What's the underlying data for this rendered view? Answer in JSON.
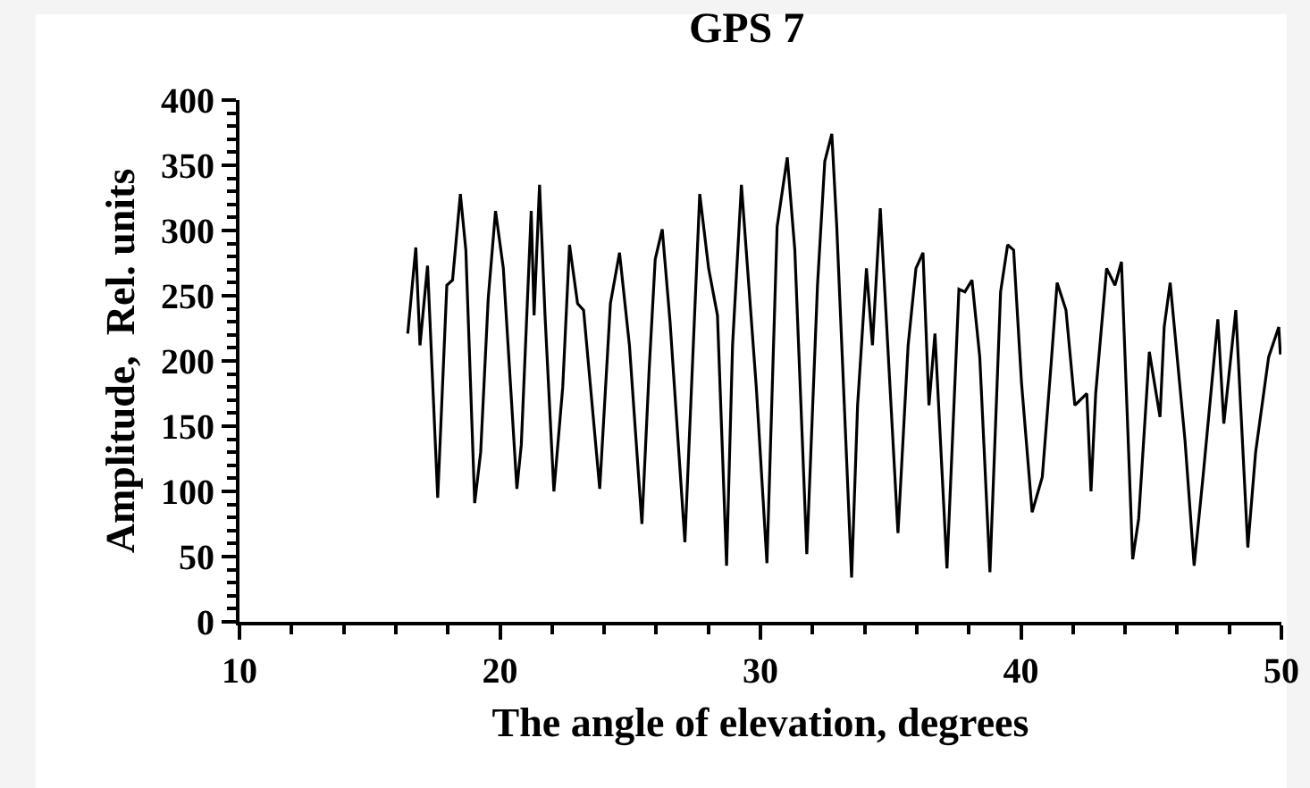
{
  "chart_data": {
    "type": "line",
    "title": "GPS 7",
    "xlabel": "The angle of elevation, degrees",
    "ylabel": "Amplitude,  Rel. units",
    "xlim": [
      10,
      50
    ],
    "ylim": [
      0,
      400
    ],
    "xticks": [
      10,
      {
        "value": 12,
        "label": null
      },
      {
        "value": 14,
        "label": null
      },
      {
        "value": 16,
        "label": null
      },
      {
        "value": 18,
        "label": null
      },
      20,
      {
        "value": 22,
        "label": null
      },
      {
        "value": 24,
        "label": null
      },
      {
        "value": 26,
        "label": null
      },
      {
        "value": 28,
        "label": null
      },
      30,
      {
        "value": 32,
        "label": null
      },
      {
        "value": 34,
        "label": null
      },
      {
        "value": 36,
        "label": null
      },
      {
        "value": 38,
        "label": null
      },
      40,
      {
        "value": 42,
        "label": null
      },
      {
        "value": 44,
        "label": null
      },
      {
        "value": 46,
        "label": null
      },
      {
        "value": 48,
        "label": null
      },
      50
    ],
    "yticks": [
      0,
      {
        "value": 10,
        "label": null
      },
      {
        "value": 20,
        "label": null
      },
      {
        "value": 30,
        "label": null
      },
      {
        "value": 40,
        "label": null
      },
      50,
      {
        "value": 60,
        "label": null
      },
      {
        "value": 70,
        "label": null
      },
      {
        "value": 80,
        "label": null
      },
      {
        "value": 90,
        "label": null
      },
      100,
      {
        "value": 110,
        "label": null
      },
      {
        "value": 120,
        "label": null
      },
      {
        "value": 130,
        "label": null
      },
      {
        "value": 140,
        "label": null
      },
      150,
      {
        "value": 160,
        "label": null
      },
      {
        "value": 170,
        "label": null
      },
      {
        "value": 180,
        "label": null
      },
      {
        "value": 190,
        "label": null
      },
      200,
      {
        "value": 210,
        "label": null
      },
      {
        "value": 220,
        "label": null
      },
      {
        "value": 230,
        "label": null
      },
      {
        "value": 240,
        "label": null
      },
      250,
      {
        "value": 260,
        "label": null
      },
      {
        "value": 270,
        "label": null
      },
      {
        "value": 280,
        "label": null
      },
      {
        "value": 290,
        "label": null
      },
      300,
      {
        "value": 310,
        "label": null
      },
      {
        "value": 320,
        "label": null
      },
      {
        "value": 330,
        "label": null
      },
      {
        "value": 340,
        "label": null
      },
      350,
      {
        "value": 360,
        "label": null
      },
      {
        "value": 370,
        "label": null
      },
      {
        "value": 380,
        "label": null
      },
      {
        "value": 390,
        "label": null
      },
      400
    ],
    "grid": false,
    "marker": "none",
    "line_style": "solid",
    "series": [
      {
        "color": "#000000",
        "x": [
          16.46,
          16.77,
          16.93,
          17.22,
          17.61,
          17.96,
          18.18,
          18.48,
          18.69,
          19.03,
          19.26,
          19.55,
          19.83,
          20.13,
          20.65,
          20.82,
          21.2,
          21.31,
          21.52,
          21.73,
          22.07,
          22.41,
          22.67,
          22.98,
          23.21,
          23.83,
          24.24,
          24.59,
          24.97,
          25.45,
          25.73,
          25.96,
          26.23,
          26.53,
          27.1,
          27.67,
          28.01,
          28.35,
          28.7,
          28.93,
          29.27,
          29.84,
          30.25,
          30.64,
          31.03,
          31.32,
          31.78,
          32.19,
          32.47,
          32.74,
          32.93,
          33.5,
          33.73,
          34.07,
          34.3,
          34.6,
          35.28,
          35.67,
          35.97,
          36.24,
          36.47,
          36.7,
          37.16,
          37.62,
          37.85,
          38.12,
          38.42,
          38.81,
          39.22,
          39.49,
          39.72,
          40.02,
          40.43,
          40.82,
          41.16,
          41.39,
          41.73,
          42.07,
          42.53,
          42.69,
          42.87,
          43.29,
          43.61,
          43.86,
          44.29,
          44.52,
          44.93,
          45.34,
          45.5,
          45.73,
          46.3,
          46.65,
          46.99,
          47.56,
          47.79,
          48.25,
          48.71,
          49.01,
          49.51,
          49.9,
          49.96
        ],
        "values": [
          221,
          287,
          212,
          273,
          95,
          258,
          262,
          328,
          285,
          91,
          130,
          248,
          315,
          271,
          102,
          136,
          315,
          235,
          335,
          235,
          100,
          180,
          289,
          244,
          239,
          102,
          244,
          283,
          212,
          75,
          194,
          278,
          301,
          230,
          61,
          328,
          271,
          235,
          43,
          212,
          335,
          180,
          45,
          303,
          356,
          285,
          52,
          258,
          353,
          374,
          303,
          34,
          166,
          271,
          212,
          317,
          68,
          212,
          271,
          283,
          166,
          221,
          41,
          255,
          253,
          262,
          203,
          38,
          253,
          289,
          285,
          184,
          84,
          111,
          198,
          260,
          239,
          166,
          175,
          100,
          175,
          271,
          258,
          276,
          48,
          79,
          207,
          157,
          226,
          260,
          139,
          43,
          111,
          232,
          152,
          239,
          57,
          130,
          203,
          226,
          205
        ]
      }
    ]
  }
}
